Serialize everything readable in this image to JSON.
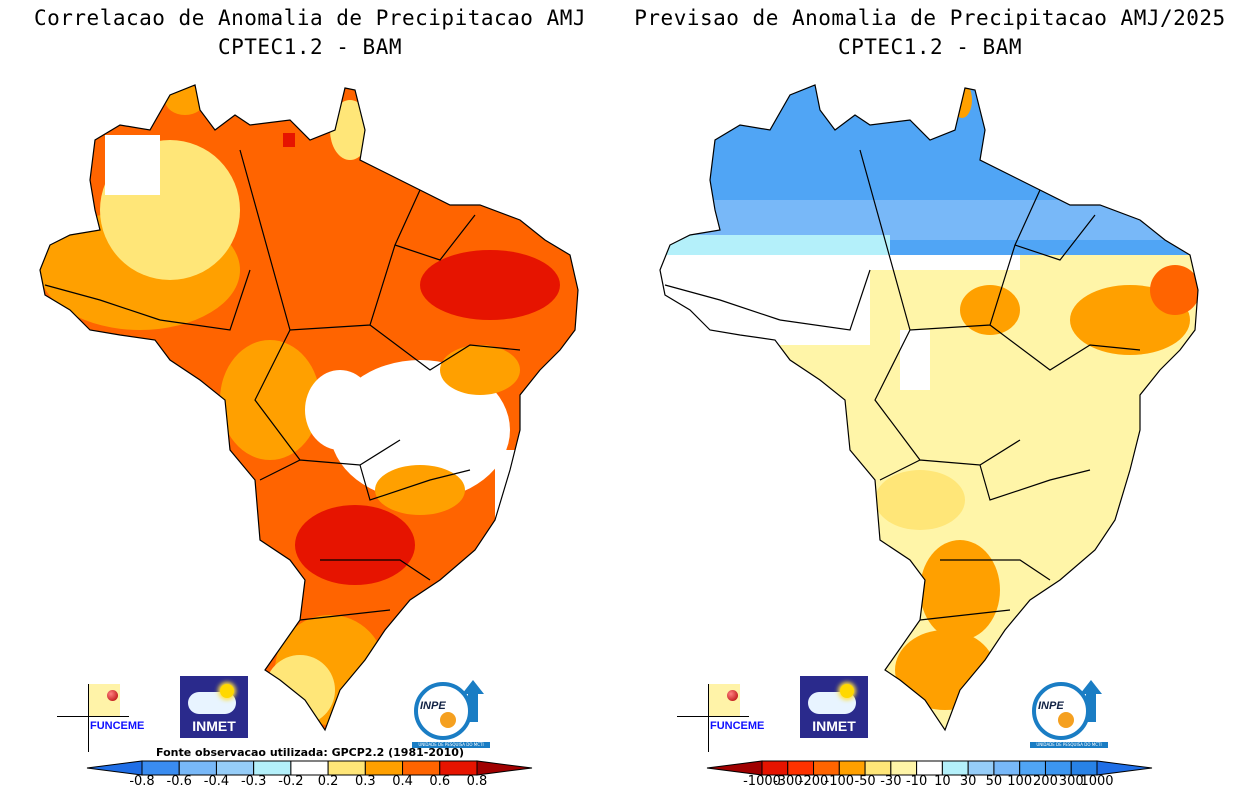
{
  "left_panel": {
    "title_line1": "Correlacao de Anomalia de Precipitacao AMJ",
    "title_line2": "CPTEC1.2 - BAM",
    "source_note": "Fonte observacao utilizada: GPCP2.2 (1981-2010)",
    "colorbar": {
      "labels": [
        "-0.8",
        "-0.6",
        "-0.4",
        "-0.3",
        "-0.2",
        "0.2",
        "0.3",
        "0.4",
        "0.6",
        "0.8"
      ],
      "colors": [
        "#1f6ee6",
        "#3a8cf0",
        "#78b8f8",
        "#96cdf8",
        "#b4f0fa",
        "#ffffff",
        "#ffe678",
        "#ffa000",
        "#ff6400",
        "#e61400",
        "#a00000"
      ]
    }
  },
  "right_panel": {
    "title_line1": "Previsao de Anomalia de Precipitacao AMJ/2025",
    "title_line2": "CPTEC1.2 - BAM",
    "colorbar": {
      "labels": [
        "-1000",
        "-300",
        "-200",
        "-100",
        "-50",
        "-30",
        "-10",
        "10",
        "30",
        "50",
        "100",
        "200",
        "300",
        "1000"
      ],
      "colors": [
        "#a00000",
        "#e61400",
        "#ff3200",
        "#ff6400",
        "#ffa000",
        "#ffe678",
        "#fff5a8",
        "#ffffff",
        "#b4f0fa",
        "#96cdf8",
        "#78b8f8",
        "#50a5f5",
        "#3c96f0",
        "#2882e6",
        "#1f6ee6"
      ]
    }
  },
  "logos": {
    "funceme": "FUNCEME",
    "inmet": "INMET",
    "inpe": "INPE",
    "inpe_tagline": "UNIDADE DE PESQUISA DO MCTI"
  }
}
